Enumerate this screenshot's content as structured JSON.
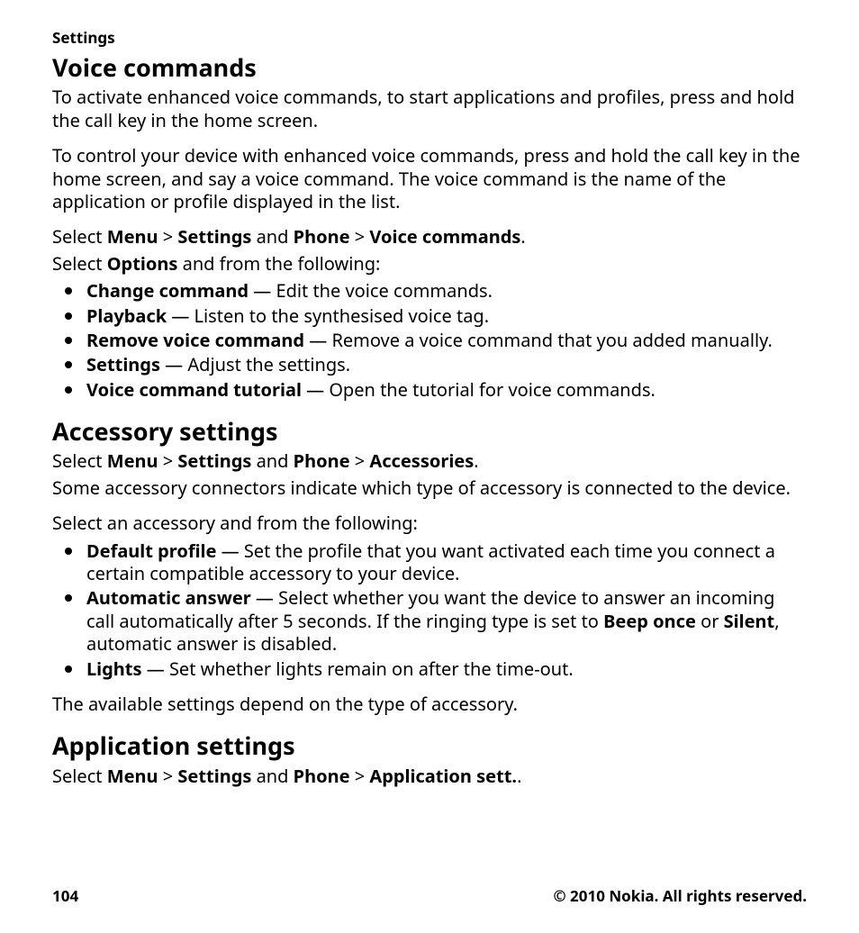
{
  "header": {
    "label": "Settings"
  },
  "voice": {
    "title": "Voice commands",
    "intro1": "To activate enhanced voice commands, to start applications and profiles, press and hold the call key in the home screen.",
    "intro2": "To control your device with enhanced voice commands, press and hold the call key in the home screen, and say a voice command. The voice command is the name of the application or profile displayed in the list.",
    "nav_pre": "Select ",
    "nav_menu": "Menu",
    "nav_gt1": "  >  ",
    "nav_settings": "Settings",
    "nav_and": " and ",
    "nav_phone": "Phone",
    "nav_gt2": "  >  ",
    "nav_last": "Voice commands",
    "nav_post": ".",
    "opts_pre": "Select ",
    "opts_bold": "Options",
    "opts_post": " and from the following:",
    "items": [
      {
        "label": "Change command",
        "sep": "  — ",
        "desc": "Edit the voice commands."
      },
      {
        "label": "Playback",
        "sep": "  — ",
        "desc": "Listen to the synthesised voice tag."
      },
      {
        "label": "Remove voice command",
        "sep": "  — ",
        "desc": "Remove a voice command that you added manually."
      },
      {
        "label": "Settings",
        "sep": "  — ",
        "desc": "Adjust the settings."
      },
      {
        "label": "Voice command tutorial",
        "sep": "  — ",
        "desc": "Open the tutorial for voice commands."
      }
    ]
  },
  "accessory": {
    "title": "Accessory settings",
    "nav_pre": "Select ",
    "nav_menu": "Menu",
    "nav_gt1": "  >  ",
    "nav_settings": "Settings",
    "nav_and": " and ",
    "nav_phone": "Phone",
    "nav_gt2": "  >  ",
    "nav_last": "Accessories",
    "nav_post": ".",
    "p1": "Some accessory connectors indicate which type of accessory is connected to the device.",
    "p2": "Select an accessory and from the following:",
    "items": [
      {
        "label": "Default profile",
        "sep": "  — ",
        "desc": "Set the profile that you want activated each time you connect a certain compatible accessory to your device."
      },
      {
        "label": "Automatic answer",
        "sep": "  — ",
        "desc_a": "Select whether you want the device to answer an incoming call automatically after 5 seconds. If the ringing type is set to ",
        "desc_b1": "Beep once",
        "desc_mid": " or ",
        "desc_b2": "Silent",
        "desc_c": ", automatic answer is disabled."
      },
      {
        "label": "Lights",
        "sep": "  — ",
        "desc": "Set whether lights remain on after the time-out."
      }
    ],
    "p3": "The available settings depend on the type of accessory."
  },
  "app": {
    "title": "Application settings",
    "nav_pre": "Select ",
    "nav_menu": "Menu",
    "nav_gt1": "  >  ",
    "nav_settings": "Settings",
    "nav_and": " and ",
    "nav_phone": "Phone",
    "nav_gt2": "  >  ",
    "nav_last": "Application sett.",
    "nav_post": "."
  },
  "footer": {
    "page": "104",
    "copyright": "© 2010 Nokia. All rights reserved."
  }
}
